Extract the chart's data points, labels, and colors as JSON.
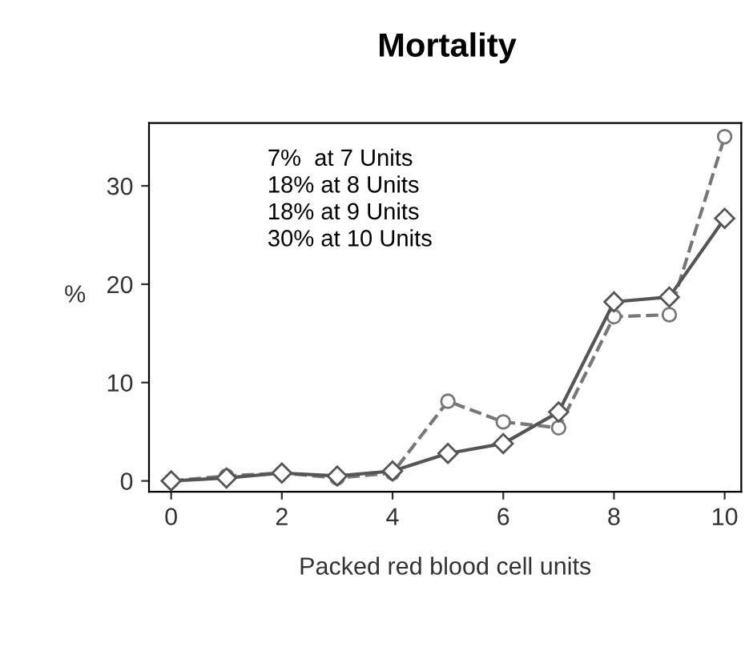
{
  "chart_data": {
    "type": "line",
    "title": "Mortality",
    "xlabel": "Packed red blood cell units",
    "ylabel": "%",
    "x": [
      0,
      1,
      2,
      3,
      4,
      5,
      6,
      7,
      8,
      9,
      10
    ],
    "series": [
      {
        "color": "#555555",
        "marker": "diamond",
        "line_style": "solid",
        "values": [
          0,
          0.3,
          0.8,
          0.5,
          1,
          2.8,
          3.8,
          7,
          18.2,
          18.7,
          26.7
        ]
      },
      {
        "color": "#777777",
        "marker": "circle",
        "line_style": "dashed",
        "values": [
          0,
          0.5,
          0.8,
          0.3,
          0.8,
          8.1,
          6,
          5.4,
          16.7,
          16.9,
          35
        ]
      }
    ],
    "xlim": [
      -0.4,
      10.3
    ],
    "ylim": [
      -1.1,
      36.4
    ],
    "xticks": [
      0,
      2,
      4,
      6,
      8,
      10
    ],
    "yticks": [
      0,
      10,
      20,
      30
    ],
    "grid": false,
    "legend": false,
    "annotations": [
      "7%  at 7 Units",
      "18% at 8 Units",
      "18% at 9 Units",
      "30% at 10 Units"
    ]
  }
}
